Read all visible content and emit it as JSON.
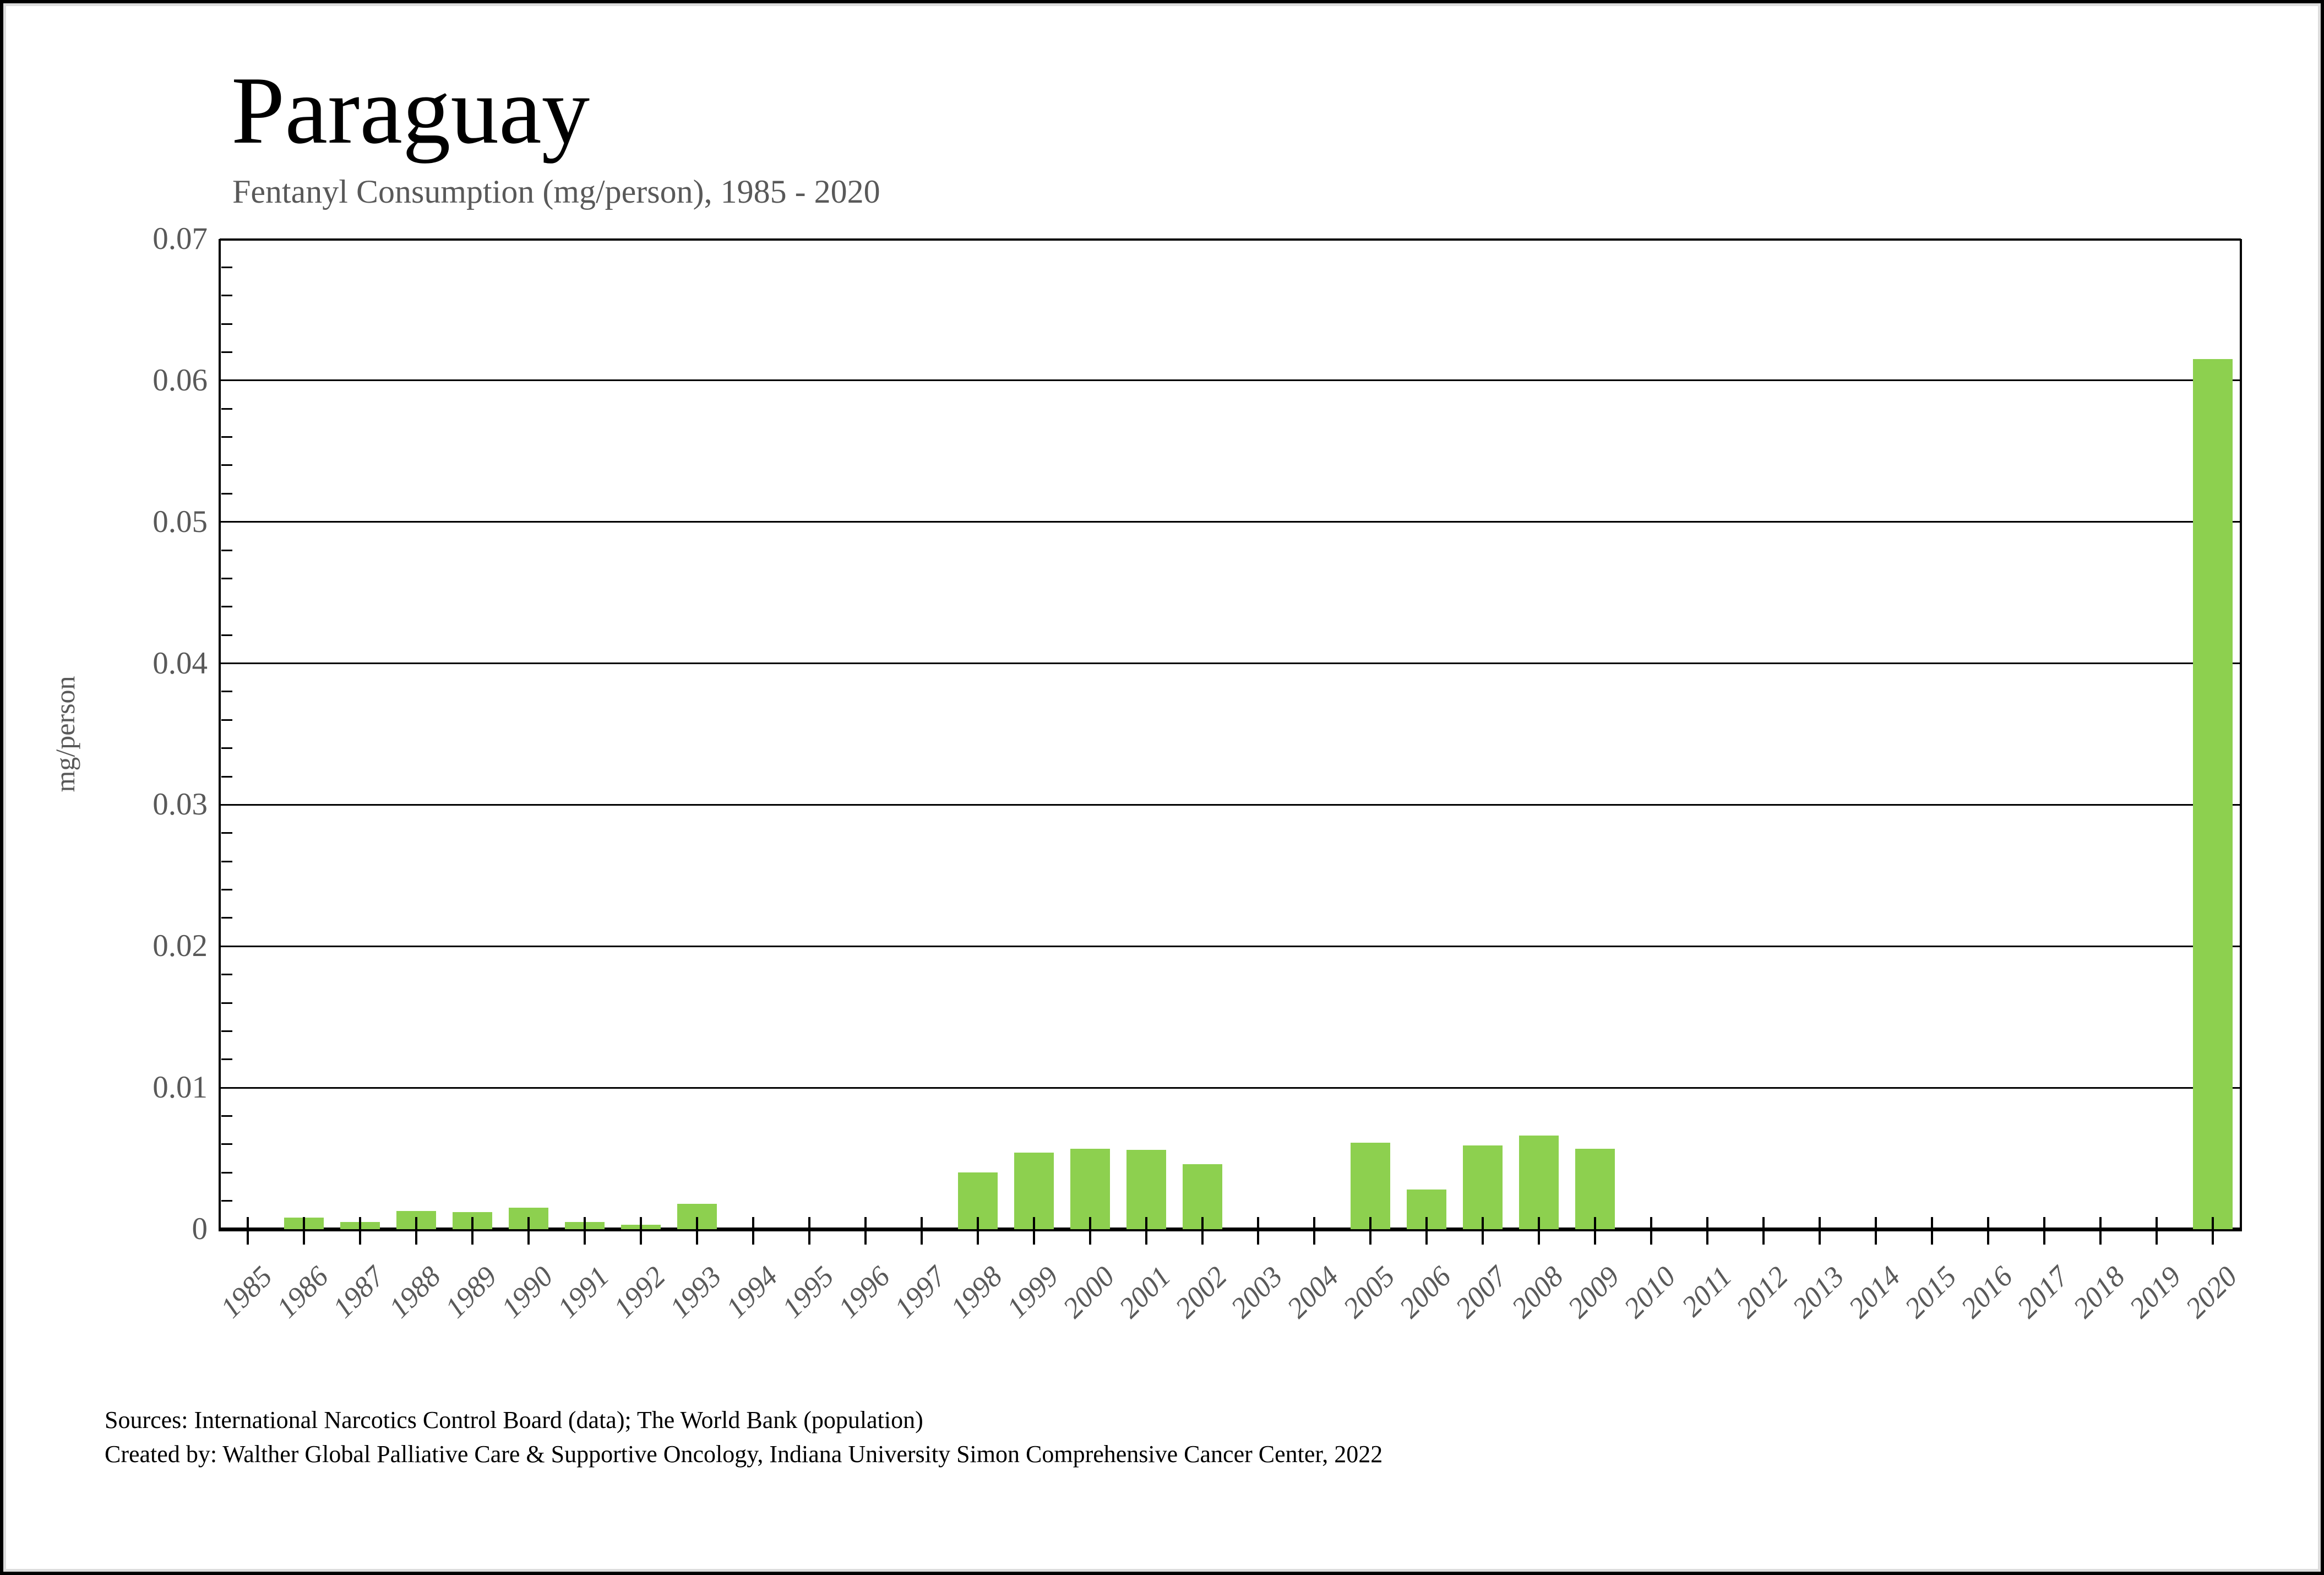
{
  "chart_data": {
    "type": "bar",
    "title": "Paraguay",
    "subtitle": "Fentanyl Consumption (mg/person), 1985 - 2020",
    "ylabel": "mg/person",
    "xlabel": "",
    "ylim": [
      0,
      0.07
    ],
    "y_major_step": 0.01,
    "y_minor_step": 0.002,
    "grid": "horizontal-major",
    "legend": "none",
    "bar_color": "#8DD04F",
    "axis_color": "#000000",
    "label_color": "#595959",
    "categories": [
      "1985",
      "1986",
      "1987",
      "1988",
      "1989",
      "1990",
      "1991",
      "1992",
      "1993",
      "1994",
      "1995",
      "1996",
      "1997",
      "1998",
      "1999",
      "2000",
      "2001",
      "2002",
      "2003",
      "2004",
      "2005",
      "2006",
      "2007",
      "2008",
      "2009",
      "2010",
      "2011",
      "2012",
      "2013",
      "2014",
      "2015",
      "2016",
      "2017",
      "2018",
      "2019",
      "2020"
    ],
    "values": [
      0,
      0.0008,
      0.0005,
      0.0013,
      0.0012,
      0.0015,
      0.0005,
      0.0003,
      0.0018,
      0,
      0,
      0,
      0,
      0.004,
      0.0054,
      0.0057,
      0.0056,
      0.0046,
      0,
      0,
      0.0061,
      0.0028,
      0.0059,
      0.0066,
      0.0057,
      0,
      0,
      0,
      0,
      0,
      0,
      0,
      0,
      0,
      0,
      0.0615
    ],
    "y_tick_labels": [
      "0",
      "0.01",
      "0.02",
      "0.03",
      "0.04",
      "0.05",
      "0.06",
      "0.07"
    ]
  },
  "footer": {
    "sources": "Sources: International Narcotics Control Board (data); The World Bank (population)",
    "credit": "Created by: Walther Global Palliative Care & Supportive Oncology, Indiana University Simon Comprehensive Cancer Center, 2022"
  }
}
